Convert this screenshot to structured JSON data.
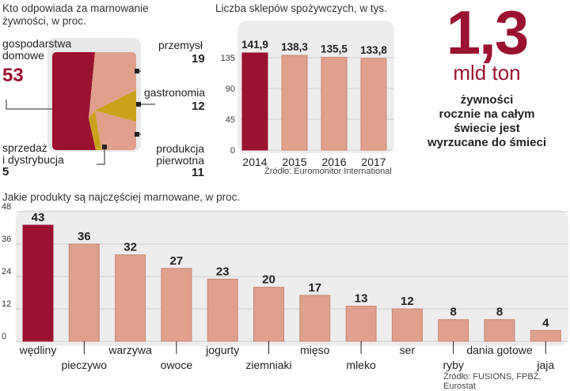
{
  "colors": {
    "accent": "#9b1130",
    "bar": "#e0a08c",
    "bar_border": "#c98571",
    "gold": "#c9a21a",
    "panel": "#ededed"
  },
  "waste_share": {
    "title_line1": "Kto odpowiada za marnowanie",
    "title_line2": "żywności, w proc.",
    "households": {
      "label_line1": "gospodarstwa",
      "label_line2": "domowe",
      "value": "53"
    },
    "industry": {
      "label": "przemysł",
      "value": "19"
    },
    "gastronomy": {
      "label": "gastronomia",
      "value": "12"
    },
    "production": {
      "label_line1": "produkcja",
      "label_line2": "pierwotna",
      "value": "11"
    },
    "sales": {
      "label_line1": "sprzedaż",
      "label_line2": "i dystrybucja",
      "value": "5"
    }
  },
  "big_stat": {
    "number": "1,3",
    "unit": "mld ton",
    "desc_line1": "żywności",
    "desc_line2": "rocznie na całym",
    "desc_line3": "świecie jest",
    "desc_line4": "wyrzucane do śmieci"
  },
  "chart_data": [
    {
      "type": "bar",
      "title": "Liczba sklepów spożywczych, w tys.",
      "categories": [
        "2014",
        "2015",
        "2016",
        "2017"
      ],
      "values": [
        141.9,
        138.3,
        135.5,
        133.8
      ],
      "value_labels": [
        "141,9",
        "138,3",
        "135,5",
        "133,8"
      ],
      "yticks": [
        0,
        45,
        90,
        135
      ],
      "ylim": [
        0,
        150
      ],
      "source": "Źródło: Euromonitor International"
    },
    {
      "type": "bar",
      "title": "Jakie produkty są najczęściej marnowane, w proc.",
      "categories": [
        "wędliny",
        "pieczywo",
        "warzywa",
        "owoce",
        "jogurty",
        "ziemniaki",
        "mięso",
        "mleko",
        "ser",
        "ryby",
        "dania gotowe",
        "jaja"
      ],
      "values": [
        43,
        36,
        32,
        27,
        23,
        20,
        17,
        13,
        12,
        8,
        8,
        4
      ],
      "yticks": [
        0,
        12,
        24,
        36,
        48
      ],
      "ylim": [
        0,
        48
      ],
      "source": "Źródło: FUSIONS, FPBŻ, Eurostat"
    }
  ]
}
